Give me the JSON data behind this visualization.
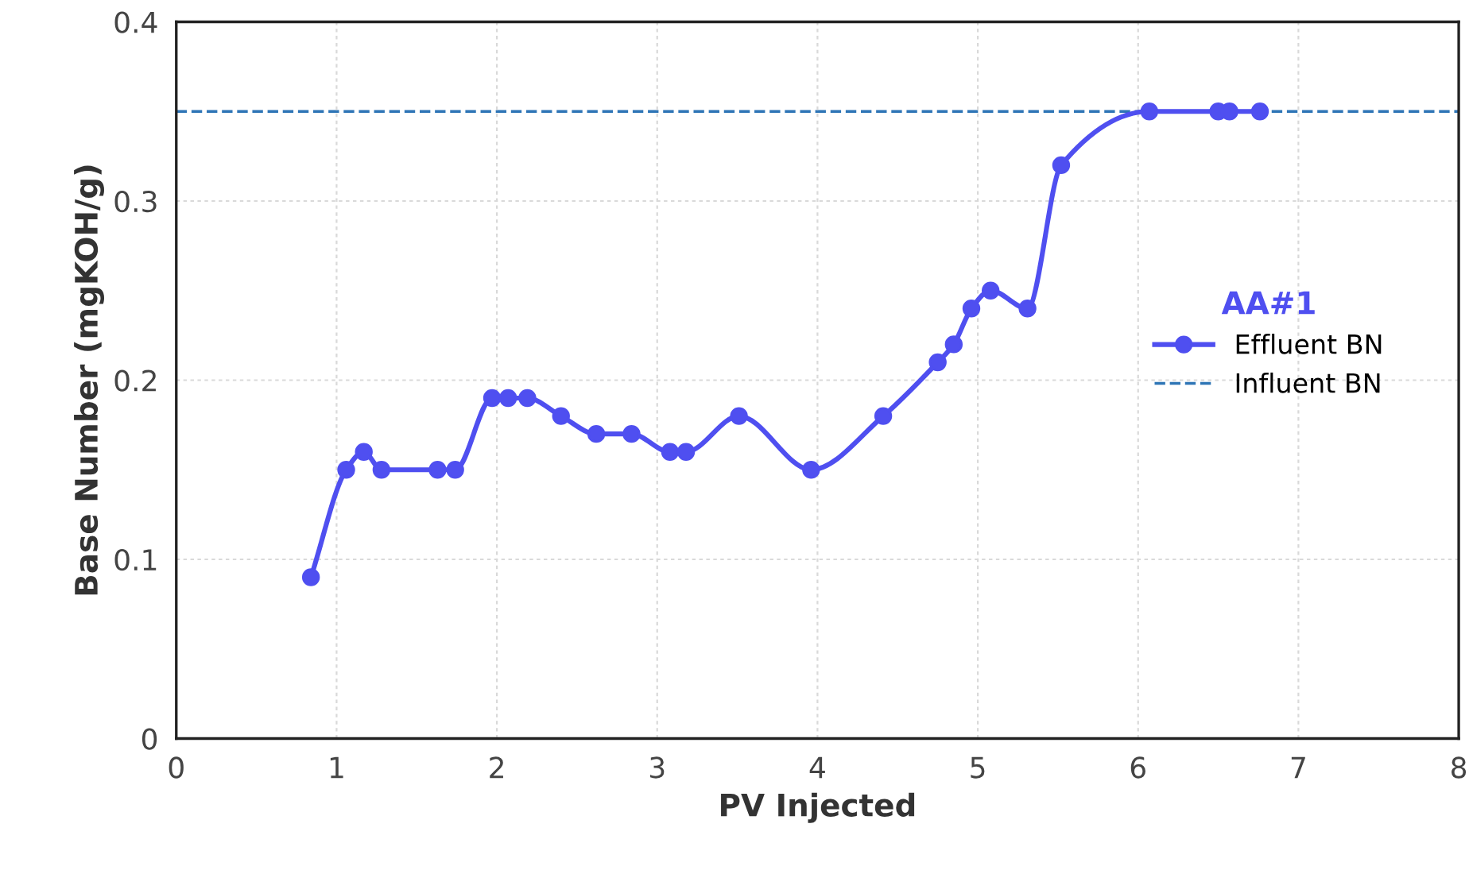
{
  "chart_data": {
    "type": "line",
    "xlabel": "PV Injected",
    "ylabel": "Base Number (mgKOH/g)",
    "legend_title": "AA#1",
    "legend": "right",
    "grid": true,
    "marker": "circle",
    "line_style": "solid",
    "xlim": [
      0,
      8
    ],
    "xticks": [
      0,
      1,
      2,
      3,
      4,
      5,
      6,
      7,
      8
    ],
    "ylim": [
      0,
      0.4
    ],
    "yticks": [
      0,
      0.1,
      0.2,
      0.3,
      0.4
    ],
    "series": [
      {
        "name": "Effluent BN",
        "color": "#4f4ff0",
        "x": [
          0.84,
          1.06,
          1.17,
          1.28,
          1.63,
          1.74,
          1.97,
          2.07,
          2.19,
          2.4,
          2.62,
          2.84,
          3.08,
          3.18,
          3.51,
          3.96,
          4.41,
          4.75,
          4.85,
          4.96,
          5.08,
          5.31,
          5.52,
          6.07,
          6.5,
          6.57,
          6.76
        ],
        "values": [
          0.09,
          0.15,
          0.16,
          0.15,
          0.15,
          0.15,
          0.19,
          0.19,
          0.19,
          0.18,
          0.17,
          0.17,
          0.16,
          0.16,
          0.18,
          0.15,
          0.18,
          0.21,
          0.22,
          0.24,
          0.25,
          0.24,
          0.32,
          0.35,
          0.35,
          0.35,
          0.35
        ]
      }
    ],
    "ref_lines": [
      {
        "axis": "y",
        "value": 0.35,
        "label": "Influent BN",
        "color": "#2e75b6",
        "line_style": "dashed"
      }
    ]
  }
}
